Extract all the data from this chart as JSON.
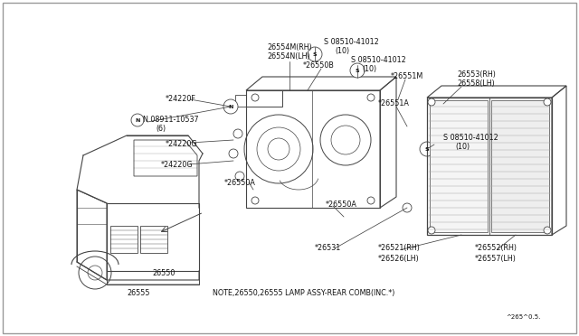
{
  "background_color": "#ffffff",
  "fig_width": 6.4,
  "fig_height": 3.72,
  "dpi": 100,
  "diagram_note": "NOTE,26550,26555 LAMP ASSY-REAR COMB〈INC.*〉",
  "diagram_note2": "NOTE,26550,26555 LAMP ASSY-REAR COMB(INC.*)",
  "diagram_code": "^265^0.5.",
  "line_color": "#444444",
  "text_color": "#111111",
  "fs": 5.8
}
